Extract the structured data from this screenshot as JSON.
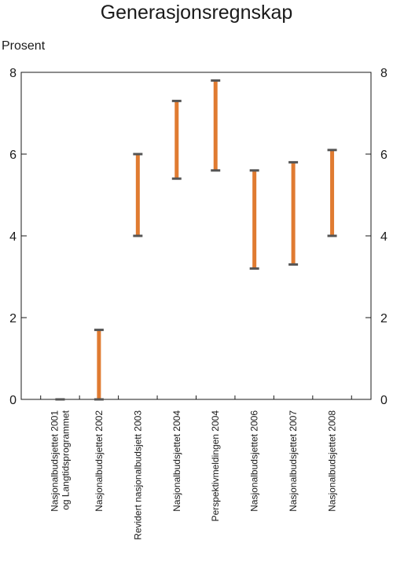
{
  "chart_data": {
    "type": "range-bar",
    "title": "Generasjonsregnskap",
    "ylabel": "Prosent",
    "xlabel": "",
    "ylim": [
      0,
      8
    ],
    "yticks": [
      0,
      2,
      4,
      6,
      8
    ],
    "grid": false,
    "dual_y_axis": true,
    "colors": {
      "bar": "#e07b31",
      "cap": "#555555",
      "axis": "#1a1a1a"
    },
    "categories": [
      [
        "Nasjonalbudsjettet 2001",
        "og Langtidsprogrammet"
      ],
      [
        "Nasjonalbudsjettet  2002"
      ],
      [
        "Revidert nasjonalbudsjett  2003"
      ],
      [
        "Nasjonalbudsjettet 2004"
      ],
      [
        "Perspektivmeldingen 2004"
      ],
      [
        "Nasjonalbudsjettet 2006"
      ],
      [
        "Nasjonalbudsjettet 2007"
      ],
      [
        "Nasjonalbudsjettet 2008"
      ]
    ],
    "ranges": [
      [
        0,
        0
      ],
      [
        0,
        1.7
      ],
      [
        4.0,
        6.0
      ],
      [
        5.4,
        7.3
      ],
      [
        5.6,
        7.8
      ],
      [
        3.2,
        5.6
      ],
      [
        3.3,
        5.8
      ],
      [
        4.0,
        6.1
      ]
    ]
  }
}
